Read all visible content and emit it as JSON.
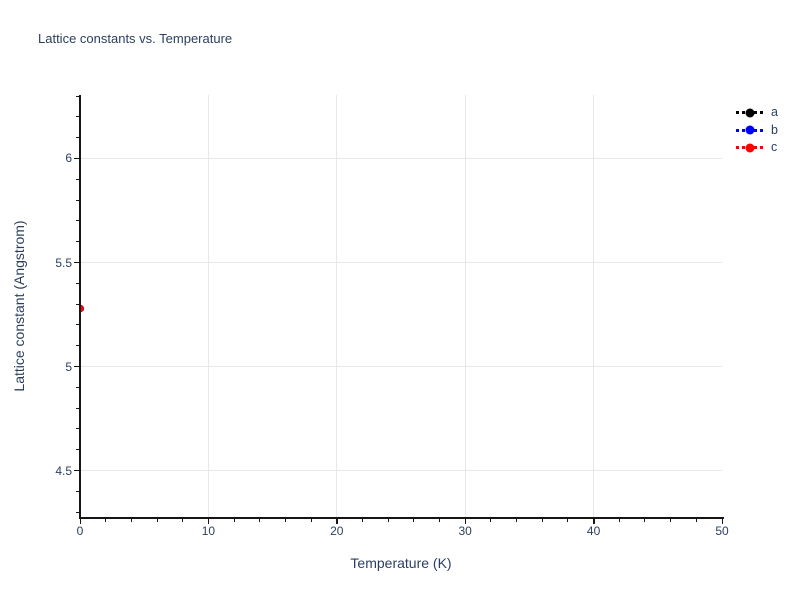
{
  "title": "Lattice constants vs. Temperature",
  "colors": {
    "background": "#ffffff",
    "text": "#2a3f5f",
    "grid": "#e8e8e8",
    "axis": "#161616",
    "series_a": "#000000",
    "series_b": "#0000ff",
    "series_c": "#ff0000"
  },
  "legend": {
    "position": "top-right",
    "entries": [
      {
        "label": "a",
        "color": "#000000"
      },
      {
        "label": "b",
        "color": "#0000ff"
      },
      {
        "label": "c",
        "color": "#ff0000"
      }
    ]
  },
  "chart_data": {
    "type": "scatter",
    "title": "Lattice constants vs. Temperature",
    "xlabel": "Temperature (K)",
    "ylabel": "Lattice constant (Angstrom)",
    "xlim": [
      0,
      50
    ],
    "ylim": [
      4.277,
      6.305
    ],
    "x_ticks": [
      0,
      10,
      20,
      30,
      40,
      50
    ],
    "y_ticks": [
      4.5,
      5,
      5.5,
      6
    ],
    "x_minor_step": 2,
    "y_minor_step": 0.1,
    "grid": true,
    "grid_x_at": [
      10,
      20,
      30,
      40
    ],
    "grid_y_at": [
      4.5,
      5,
      5.5,
      6
    ],
    "line_style": "dot",
    "marker": "circle",
    "series": [
      {
        "name": "a",
        "color": "#000000",
        "x": [
          0
        ],
        "y": [
          5.28
        ]
      },
      {
        "name": "b",
        "color": "#0000ff",
        "x": [
          0
        ],
        "y": [
          5.28
        ]
      },
      {
        "name": "c",
        "color": "#ff0000",
        "x": [
          0
        ],
        "y": [
          5.28
        ]
      }
    ]
  }
}
